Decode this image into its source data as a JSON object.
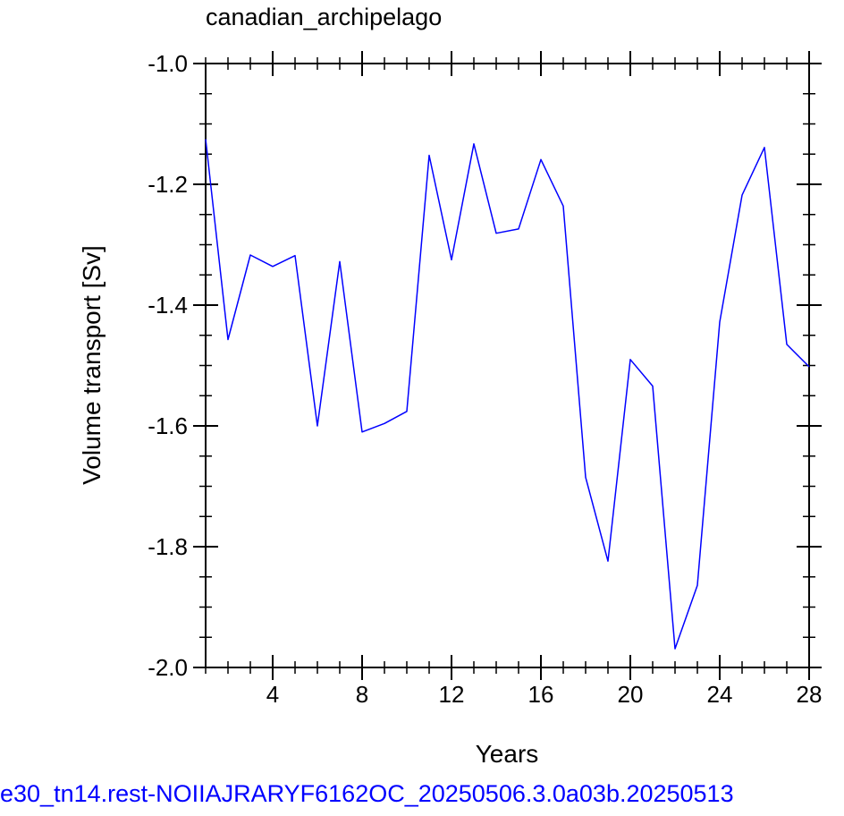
{
  "header": {
    "title": "canadian_archipelago"
  },
  "footer": {
    "caption": "e30_tn14.rest-NOIIAJRARYF6162OC_20250506.3.0a03b.20250513"
  },
  "colors": {
    "line": "#0000ff",
    "axis": "#000000",
    "footer_text": "#0000ff"
  },
  "chart_data": {
    "type": "line",
    "title": "canadian_archipelago",
    "xlabel": "Years",
    "ylabel": "Volume transport [Sv]",
    "xlim": [
      1,
      28
    ],
    "ylim": [
      -2.0,
      -1.0
    ],
    "xticks": [
      4,
      8,
      12,
      16,
      20,
      24,
      28
    ],
    "xtick_labels": [
      "4",
      "8",
      "12",
      "16",
      "20",
      "24",
      "28"
    ],
    "yticks": [
      -1.0,
      -1.2,
      -1.4,
      -1.6,
      -1.8,
      -2.0
    ],
    "ytick_labels": [
      "-1.0",
      "-1.2",
      "-1.4",
      "-1.6",
      "-1.8",
      "-2.0"
    ],
    "grid": false,
    "x": [
      1,
      2,
      3,
      4,
      5,
      6,
      7,
      8,
      9,
      10,
      11,
      12,
      13,
      14,
      15,
      16,
      17,
      18,
      19,
      20,
      21,
      22,
      23,
      24,
      25,
      26,
      27,
      28
    ],
    "series": [
      {
        "values": [
          -1.125,
          -1.457,
          -1.317,
          -1.336,
          -1.318,
          -1.6,
          -1.328,
          -1.61,
          -1.596,
          -1.576,
          -1.152,
          -1.325,
          -1.133,
          -1.281,
          -1.274,
          -1.159,
          -1.236,
          -1.685,
          -1.824,
          -1.49,
          -1.534,
          -1.969,
          -1.864,
          -1.428,
          -1.218,
          -1.139,
          -1.465,
          -1.502
        ]
      }
    ]
  }
}
